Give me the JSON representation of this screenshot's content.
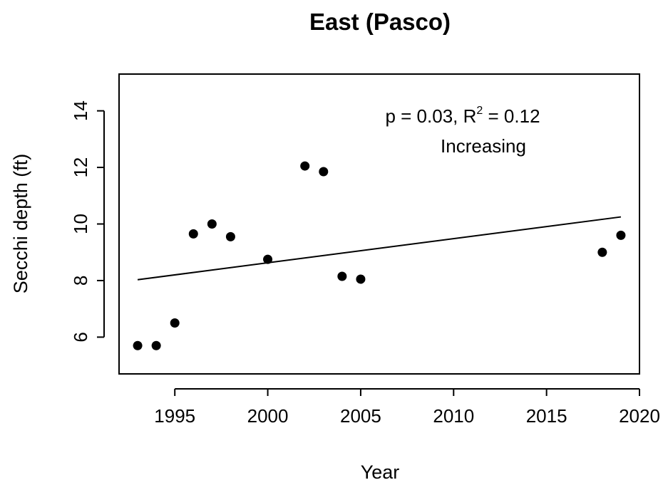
{
  "chart_data": {
    "type": "scatter",
    "title": "East (Pasco)",
    "xlabel": "Year",
    "ylabel": "Secchi depth (ft)",
    "xlim": [
      1992,
      2020
    ],
    "ylim": [
      4.7,
      15.3
    ],
    "xticks": [
      1995,
      2000,
      2005,
      2010,
      2015,
      2020
    ],
    "yticks": [
      6,
      8,
      10,
      12,
      14
    ],
    "grid": false,
    "series": [
      {
        "x": [
          1993,
          1994,
          1995,
          1996,
          1997,
          1998,
          2000,
          2002,
          2003,
          2004,
          2005,
          2018,
          2019
        ],
        "y": [
          5.7,
          5.7,
          6.5,
          9.65,
          10.0,
          9.55,
          8.75,
          12.05,
          11.85,
          8.15,
          8.05,
          9.0,
          9.6
        ]
      }
    ],
    "trendline": {
      "x": [
        1993,
        2019
      ],
      "y": [
        8.03,
        10.25
      ]
    },
    "annotation": {
      "stats_prefix": "p = 0.03, R",
      "stats_sup": "2",
      "stats_suffix": " = 0.12",
      "trend": "Increasing"
    }
  }
}
